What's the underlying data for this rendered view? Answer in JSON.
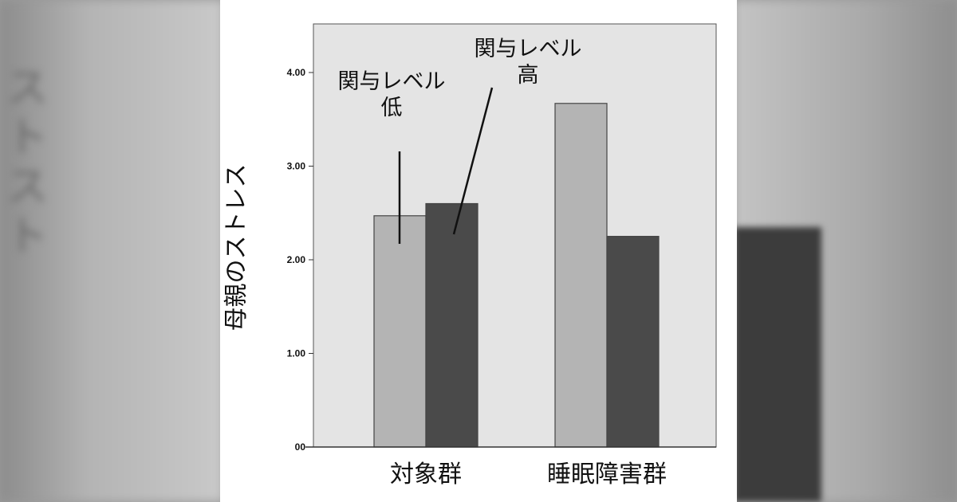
{
  "chart_data": {
    "type": "bar",
    "ylabel": "母親のストレス",
    "xlabel": "",
    "ylim": [
      0,
      4.5
    ],
    "y_ticks": [
      {
        "value": 0,
        "label": "00"
      },
      {
        "value": 1,
        "label": "1.00"
      },
      {
        "value": 2,
        "label": "2.00"
      },
      {
        "value": 3,
        "label": "3.00"
      },
      {
        "value": 4,
        "label": "4.00"
      }
    ],
    "categories": [
      "対象群",
      "睡眠障害群"
    ],
    "series": [
      {
        "name": "関与レベル低",
        "color": "#b4b4b4",
        "values": [
          2.47,
          3.67
        ]
      },
      {
        "name": "関与レベル高",
        "color": "#4a4a4a",
        "values": [
          2.6,
          2.25
        ]
      }
    ],
    "annotations": [
      {
        "lines": [
          "関与レベル",
          "低"
        ],
        "series": 0
      },
      {
        "lines": [
          "関与レベル",
          "高"
        ],
        "series": 1
      }
    ],
    "plot_background": "#e4e4e4",
    "grid": false,
    "legend": "none"
  }
}
